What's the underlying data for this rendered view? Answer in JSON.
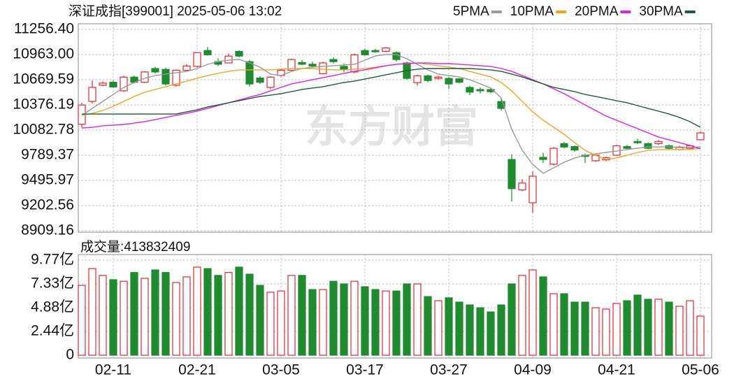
{
  "chart_data": [
    {
      "type": "candlestick",
      "title": "深证成指[399001] 2025-05-06 13:02",
      "watermark": "东方财富",
      "open": [
        10150,
        10417,
        10605,
        10640,
        10540,
        10700,
        10640,
        10800,
        10790,
        10605,
        10780,
        10825,
        11010,
        10880,
        10865,
        11000,
        10880,
        10690,
        10580,
        10720,
        10780,
        10870,
        10850,
        10740,
        10905,
        10825,
        10760,
        11010,
        11010,
        11000,
        10985,
        10865,
        10635,
        10715,
        10685,
        10685,
        10680,
        10580,
        10555,
        10555,
        10415,
        9740,
        9385,
        9235,
        9765,
        9685,
        9925,
        9890,
        9790,
        9725,
        9735,
        9790,
        9890,
        9950,
        9925,
        9925,
        9900,
        9855,
        9870,
        9970
      ],
      "high": [
        10400,
        10661,
        10650,
        10660,
        10715,
        10720,
        10770,
        10820,
        10810,
        10790,
        10850,
        10990,
        11050,
        10920,
        10975,
        11010,
        10900,
        10710,
        10710,
        10800,
        10915,
        10900,
        10880,
        10880,
        10930,
        10860,
        10975,
        11030,
        11030,
        11050,
        11000,
        10880,
        10730,
        10730,
        10715,
        10700,
        10690,
        10600,
        10580,
        10575,
        10455,
        9800,
        9510,
        9600,
        9820,
        9885,
        9945,
        9905,
        9810,
        9800,
        9775,
        9910,
        9910,
        9980,
        9940,
        9965,
        9915,
        9900,
        9910,
        10070
      ],
      "low": [
        10115,
        10393,
        10595,
        10575,
        10530,
        10625,
        10630,
        10740,
        10600,
        10590,
        10770,
        10810,
        10950,
        10830,
        10860,
        10930,
        10590,
        10620,
        10560,
        10700,
        10770,
        10840,
        10810,
        10730,
        10860,
        10760,
        10745,
        10950,
        10985,
        10990,
        10880,
        10670,
        10600,
        10640,
        10670,
        10560,
        10625,
        10490,
        10510,
        10510,
        10310,
        9250,
        9370,
        9120,
        9700,
        9670,
        9870,
        9830,
        9700,
        9710,
        9720,
        9780,
        9860,
        9920,
        9860,
        9910,
        9860,
        9845,
        9860,
        9960
      ],
      "close": [
        10375,
        10580,
        10630,
        10585,
        10700,
        10640,
        10760,
        10760,
        10620,
        10780,
        10830,
        10985,
        10960,
        10850,
        10945,
        10945,
        10620,
        10640,
        10700,
        10780,
        10905,
        10850,
        10830,
        10865,
        10880,
        10785,
        10960,
        10960,
        10995,
        11040,
        10905,
        10685,
        10715,
        10660,
        10700,
        10620,
        10640,
        10525,
        10540,
        10530,
        10335,
        9400,
        9465,
        9545,
        9740,
        9870,
        9885,
        9850,
        9775,
        9790,
        9760,
        9900,
        9870,
        9935,
        9870,
        9950,
        9870,
        9885,
        9900,
        10050
      ],
      "up_color": "#e8262b",
      "down_color": "#1e8c2e",
      "series": [
        {
          "name": "5PMA",
          "color": "#9a9a9a",
          "values": [
            10254,
            10335,
            10417,
            10498,
            10580,
            10637,
            10686,
            10718,
            10735,
            10751,
            10767,
            10800,
            10849,
            10881,
            10898,
            10906,
            10865,
            10816,
            10735,
            10718,
            10767,
            10800,
            10816,
            10824,
            10833,
            10841,
            10849,
            10898,
            10947,
            10963,
            10963,
            10914,
            10849,
            10784,
            10735,
            10718,
            10702,
            10670,
            10621,
            10572,
            10458,
            10091,
            9846,
            9683,
            9578,
            9643,
            9708,
            9757,
            9789,
            9806,
            9822,
            9838,
            9855,
            9871,
            9887,
            9887,
            9887,
            9879,
            9879,
            9887
          ]
        },
        {
          "name": "10PMA",
          "color": "#f0a61e",
          "values": [
            10254,
            10278,
            10311,
            10360,
            10417,
            10474,
            10523,
            10556,
            10588,
            10621,
            10653,
            10686,
            10718,
            10743,
            10767,
            10784,
            10784,
            10784,
            10784,
            10792,
            10800,
            10800,
            10800,
            10792,
            10784,
            10784,
            10792,
            10800,
            10816,
            10833,
            10849,
            10857,
            10865,
            10849,
            10833,
            10816,
            10800,
            10767,
            10735,
            10702,
            10637,
            10539,
            10417,
            10295,
            10197,
            10115,
            10034,
            9936,
            9846,
            9789,
            9740,
            9757,
            9789,
            9822,
            9846,
            9855,
            9855,
            9855,
            9855,
            9871
          ]
        },
        {
          "name": "20PMA",
          "color": "#e020e0",
          "values": [
            10107,
            10115,
            10132,
            10140,
            10148,
            10164,
            10181,
            10205,
            10230,
            10254,
            10278,
            10303,
            10335,
            10368,
            10401,
            10433,
            10466,
            10498,
            10539,
            10580,
            10621,
            10645,
            10670,
            10694,
            10718,
            10743,
            10767,
            10784,
            10808,
            10833,
            10849,
            10857,
            10865,
            10865,
            10857,
            10857,
            10849,
            10841,
            10833,
            10824,
            10800,
            10767,
            10718,
            10670,
            10621,
            10564,
            10507,
            10441,
            10376,
            10311,
            10246,
            10197,
            10148,
            10099,
            10050,
            10001,
            9969,
            9936,
            9904,
            9863
          ]
        },
        {
          "name": "30PMA",
          "color": "#1b5e3b",
          "values": [
            10270,
            10270,
            10270,
            10270,
            10270,
            10270,
            10270,
            10270,
            10270,
            10270,
            10295,
            10319,
            10352,
            10376,
            10401,
            10425,
            10450,
            10474,
            10490,
            10507,
            10531,
            10556,
            10572,
            10588,
            10613,
            10637,
            10653,
            10678,
            10702,
            10727,
            10751,
            10776,
            10792,
            10800,
            10800,
            10800,
            10800,
            10800,
            10792,
            10784,
            10767,
            10735,
            10702,
            10661,
            10621,
            10580,
            10556,
            10531,
            10498,
            10474,
            10450,
            10425,
            10401,
            10368,
            10335,
            10303,
            10270,
            10230,
            10181,
            10115
          ]
        }
      ],
      "ylim": [
        8909.16,
        11256.4
      ],
      "yticks": [
        {
          "value": 11256.4,
          "label": "11256.40"
        },
        {
          "value": 10963,
          "label": "10963.00"
        },
        10669.59,
        10376.19,
        10082.78,
        9789.37,
        9495.97,
        9202.56,
        8909.16
      ],
      "grid": true
    },
    {
      "type": "bar",
      "title": "成交量:413832409",
      "categories": [
        null,
        null,
        null,
        "02-11",
        null,
        null,
        null,
        null,
        null,
        null,
        null,
        "02-21",
        null,
        null,
        null,
        null,
        null,
        null,
        null,
        "03-05",
        null,
        null,
        null,
        null,
        null,
        null,
        null,
        "03-17",
        null,
        null,
        null,
        null,
        null,
        null,
        null,
        "03-27",
        null,
        null,
        null,
        null,
        null,
        null,
        null,
        "04-09",
        null,
        null,
        null,
        null,
        null,
        null,
        null,
        "04-21",
        null,
        null,
        null,
        null,
        null,
        null,
        null,
        "05-06"
      ],
      "values": [
        7.18,
        8.9,
        8.2,
        7.76,
        7.6,
        8.5,
        7.9,
        8.76,
        8.5,
        7.47,
        8.05,
        9.05,
        8.9,
        8.2,
        8.5,
        9.05,
        8.33,
        7.18,
        6.47,
        6.6,
        8.2,
        8.2,
        6.75,
        6.75,
        7.6,
        7.33,
        7.6,
        7.04,
        6.75,
        6.6,
        6.6,
        7.33,
        7.33,
        6.03,
        5.6,
        5.9,
        5.46,
        5.17,
        4.88,
        4.45,
        5.17,
        7.33,
        8.2,
        8.76,
        8.05,
        6.32,
        6.32,
        5.46,
        5.46,
        4.88,
        4.74,
        5.32,
        5.6,
        6.18,
        5.75,
        5.75,
        5.46,
        5.03,
        5.6,
        4.02
      ],
      "up_color": "#e8262b",
      "down_color": "#1e8c2e",
      "ylim": [
        0,
        9.77
      ],
      "yticks": [
        {
          "value": 9.77,
          "label": "9.77亿"
        },
        {
          "value": 7.33,
          "label": "7.33亿"
        },
        {
          "value": 4.88,
          "label": "4.88亿"
        },
        {
          "value": 2.44,
          "label": "2.44亿"
        },
        0
      ],
      "grid": true
    }
  ]
}
